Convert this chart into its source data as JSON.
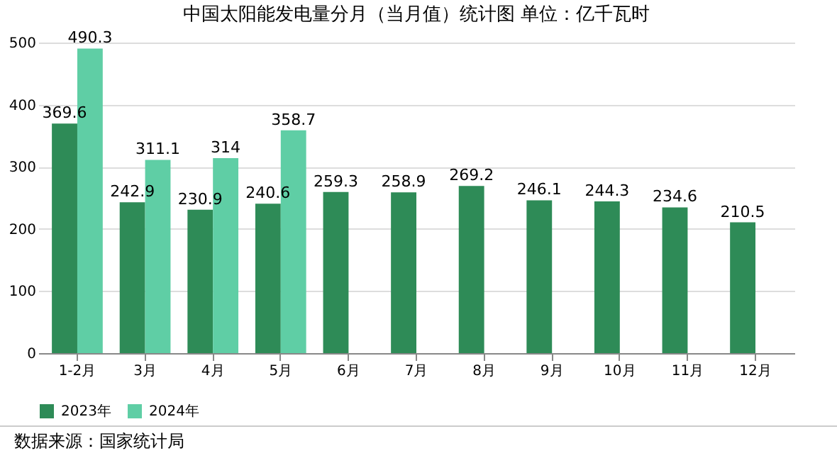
{
  "chart_data": {
    "type": "bar",
    "title": "中国太阳能发电量分月（当月值）统计图 单位：亿千瓦时",
    "categories": [
      "1-2月",
      "3月",
      "4月",
      "5月",
      "6月",
      "7月",
      "8月",
      "9月",
      "10月",
      "11月",
      "12月"
    ],
    "series": [
      {
        "name": "2023年",
        "color": "#2e8b57",
        "values": [
          369.6,
          242.9,
          230.9,
          240.6,
          259.3,
          258.9,
          269.2,
          246.1,
          244.3,
          234.6,
          210.5
        ]
      },
      {
        "name": "2024年",
        "color": "#5fcea5",
        "values": [
          490.3,
          311.1,
          314,
          358.7,
          null,
          null,
          null,
          null,
          null,
          null,
          null
        ]
      }
    ],
    "ylim": [
      0,
      500
    ],
    "yticks": [
      0,
      100,
      200,
      300,
      400,
      500
    ],
    "grid": "y",
    "legend": "bottom",
    "data_labels": true,
    "annotations": [
      "数据来源：国家统计局"
    ]
  }
}
